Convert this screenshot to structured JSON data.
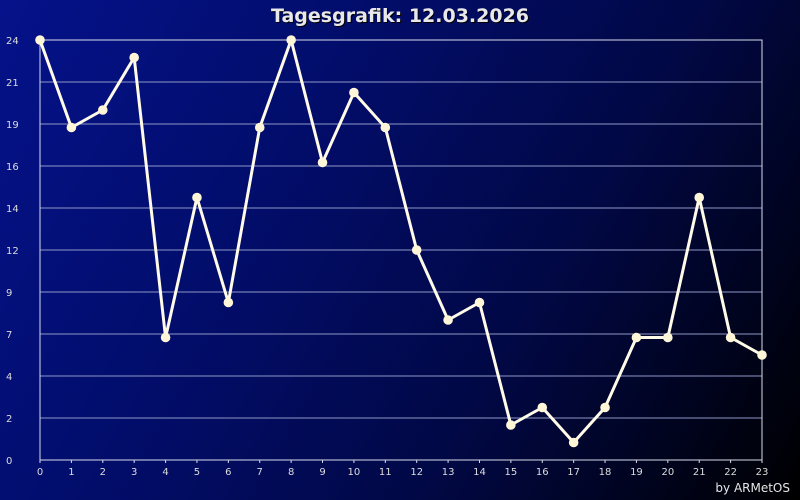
{
  "title": "Tagesgrafik: 12.03.2026",
  "credit": "by ARMetOS",
  "colors": {
    "line": "#fffbe8",
    "marker": "#fff6d8",
    "grid": "#8e97c6",
    "axis": "#d8dceb"
  },
  "chart_data": {
    "type": "line",
    "title": "Tagesgrafik: 12.03.2026",
    "xlabel": "",
    "ylabel": "",
    "x": [
      0,
      1,
      2,
      3,
      4,
      5,
      6,
      7,
      8,
      9,
      10,
      11,
      12,
      13,
      14,
      15,
      16,
      17,
      18,
      19,
      20,
      21,
      22,
      23
    ],
    "x_ticks": [
      "0",
      "1",
      "2",
      "3",
      "4",
      "5",
      "6",
      "7",
      "8",
      "9",
      "10",
      "11",
      "12",
      "13",
      "14",
      "15",
      "16",
      "17",
      "18",
      "19",
      "20",
      "21",
      "22",
      "23"
    ],
    "y_ticks": [
      "0",
      "2",
      "4",
      "7",
      "9",
      "12",
      "14",
      "16",
      "19",
      "21",
      "24"
    ],
    "ylim": [
      0,
      24
    ],
    "grid": true,
    "series": [
      {
        "values": [
          24,
          19,
          20,
          23,
          7,
          15,
          9,
          19,
          24,
          17,
          21,
          19,
          12,
          8,
          9,
          2,
          3,
          1,
          3,
          7,
          7,
          15,
          7,
          6
        ]
      }
    ]
  }
}
